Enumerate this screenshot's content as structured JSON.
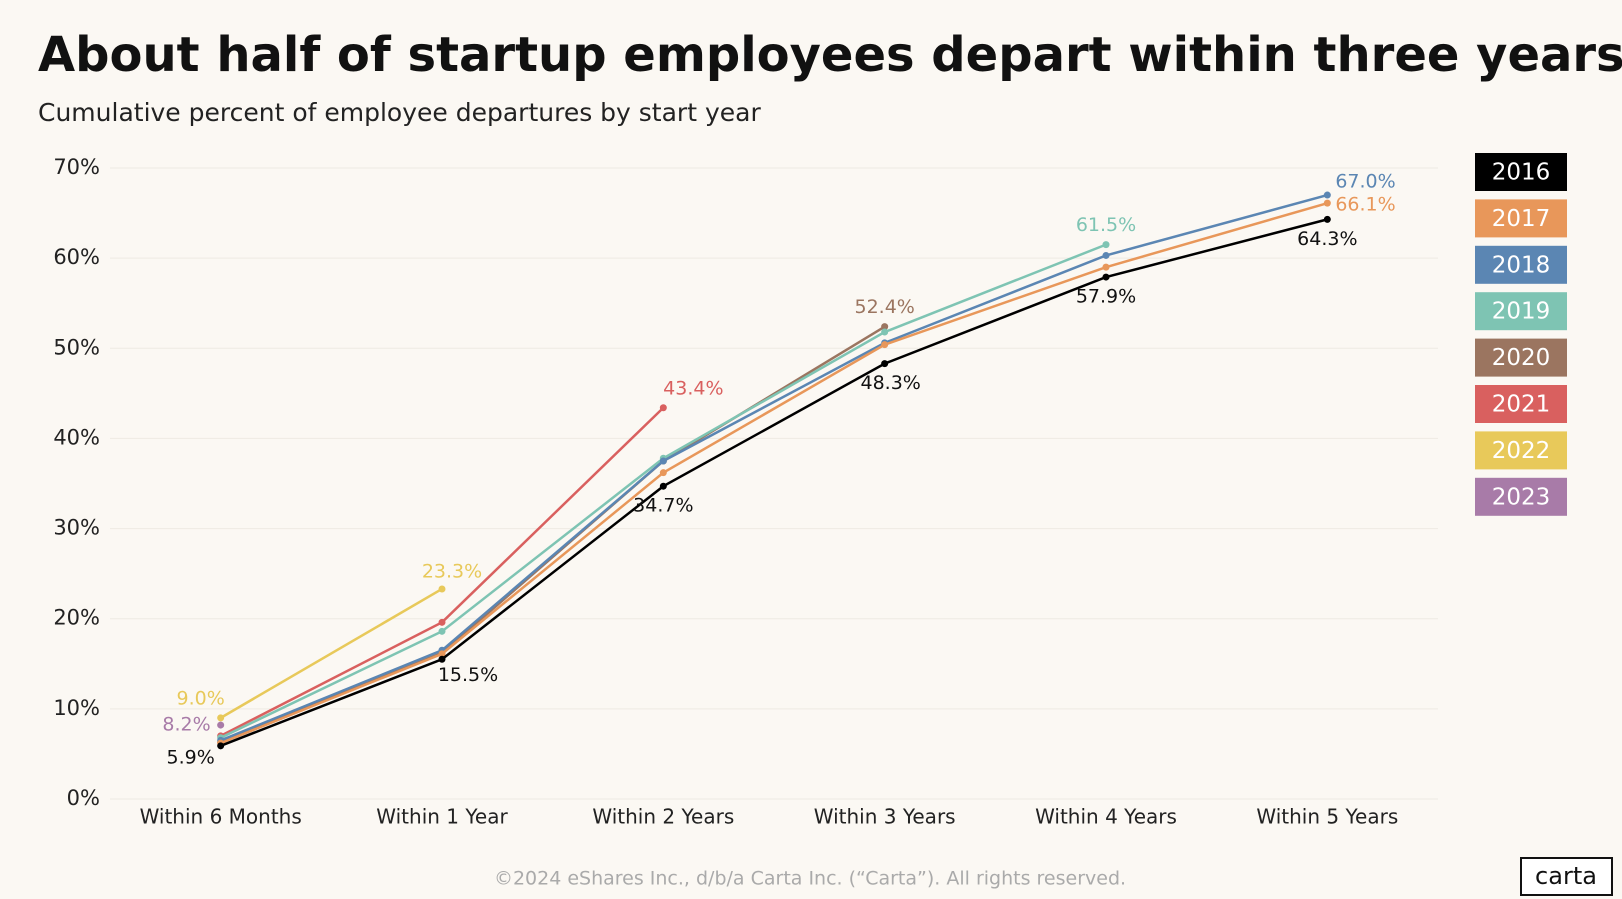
{
  "chart_data": {
    "type": "line",
    "title": "About half of startup employees depart within three years",
    "subtitle": "Cumulative percent of employee departures by start year",
    "categories": [
      "Within 6 Months",
      "Within 1 Year",
      "Within 2 Years",
      "Within 3 Years",
      "Within 4 Years",
      "Within 5 Years"
    ],
    "ylim": [
      0,
      70
    ],
    "yticks": [
      {
        "value": 0,
        "label": "0%"
      },
      {
        "value": 10,
        "label": "10%"
      },
      {
        "value": 20,
        "label": "20%"
      },
      {
        "value": 30,
        "label": "30%"
      },
      {
        "value": 40,
        "label": "40%"
      },
      {
        "value": 50,
        "label": "50%"
      },
      {
        "value": 60,
        "label": "60%"
      },
      {
        "value": 70,
        "label": "70%"
      }
    ],
    "grid": true,
    "legend": "right",
    "series": [
      {
        "name": "2016",
        "color": "#000000",
        "values": [
          5.9,
          15.5,
          34.7,
          48.3,
          57.9,
          64.3
        ],
        "value_labels": [
          "5.9%",
          "15.5%",
          "34.7%",
          "48.3%",
          "57.9%",
          "64.3%"
        ]
      },
      {
        "name": "2017",
        "color": "#e8975a",
        "values": [
          6.2,
          16.1,
          36.2,
          50.4,
          59.0,
          66.1
        ],
        "value_labels": [
          null,
          null,
          null,
          null,
          null,
          "66.1%"
        ]
      },
      {
        "name": "2018",
        "color": "#5b86b3",
        "values": [
          6.5,
          16.5,
          37.5,
          50.6,
          60.3,
          67.0
        ],
        "value_labels": [
          null,
          null,
          null,
          null,
          null,
          "67.0%"
        ]
      },
      {
        "name": "2019",
        "color": "#7ec4b3",
        "values": [
          6.8,
          18.6,
          37.8,
          51.8,
          61.5,
          null
        ],
        "value_labels": [
          null,
          null,
          null,
          null,
          "61.5%",
          null
        ]
      },
      {
        "name": "2020",
        "color": "#9b7560",
        "values": [
          6.3,
          16.2,
          37.5,
          52.4,
          null,
          null
        ],
        "value_labels": [
          null,
          null,
          null,
          "52.4%",
          null,
          null
        ]
      },
      {
        "name": "2021",
        "color": "#d9605f",
        "values": [
          7.0,
          19.6,
          43.4,
          null,
          null,
          null
        ],
        "value_labels": [
          null,
          null,
          "43.4%",
          null,
          null,
          null
        ]
      },
      {
        "name": "2022",
        "color": "#e8c95a",
        "values": [
          9.0,
          23.3,
          null,
          null,
          null,
          null
        ],
        "value_labels": [
          "9.0%",
          "23.3%",
          null,
          null,
          null,
          null
        ]
      },
      {
        "name": "2023",
        "color": "#a87ba8",
        "values": [
          8.2,
          null,
          null,
          null,
          null,
          null
        ],
        "value_labels": [
          "8.2%",
          null,
          null,
          null,
          null,
          null
        ]
      }
    ],
    "footer": "©2024 eShares Inc., d/b/a Carta Inc. (“Carta”). All rights reserved.",
    "logo": "carta"
  }
}
